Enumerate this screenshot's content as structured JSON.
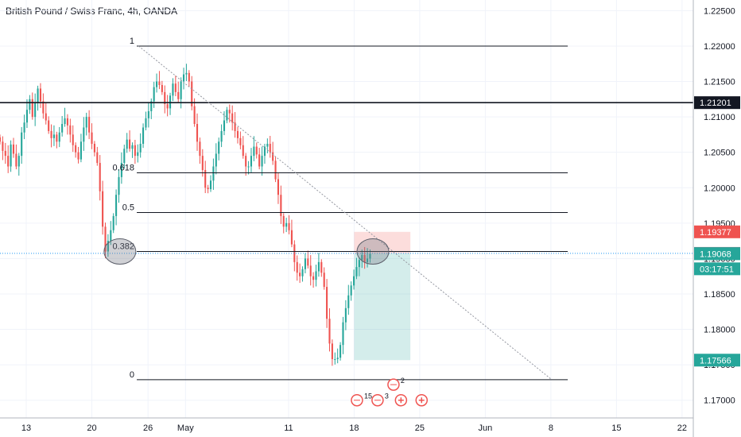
{
  "chart_data": {
    "type": "candlestick",
    "title": "British Pound / Swiss Franc, 4h, OANDA",
    "ylim": [
      1.1675,
      1.2265
    ],
    "y_ticks": [
      "1.22500",
      "1.22000",
      "1.21500",
      "1.21000",
      "1.20500",
      "1.20000",
      "1.19500",
      "1.19000",
      "1.18500",
      "1.18000",
      "1.17500",
      "1.17000"
    ],
    "x_ticks": [
      {
        "label": "13",
        "day": 13
      },
      {
        "label": "20",
        "day": 20
      },
      {
        "label": "26",
        "day": 26
      },
      {
        "label": "May",
        "day": 30
      },
      {
        "label": "11",
        "day": 41
      },
      {
        "label": "18",
        "day": 48
      },
      {
        "label": "25",
        "day": 55
      },
      {
        "label": "Jun",
        "day": 62
      },
      {
        "label": "8",
        "day": 69
      },
      {
        "label": "15",
        "day": 76
      },
      {
        "label": "22",
        "day": 83
      }
    ],
    "xlim": [
      10.2,
      84.2
    ],
    "candle_closes": [
      1.2065,
      1.2052,
      1.2045,
      1.203,
      1.2061,
      1.2048,
      1.203,
      1.2045,
      1.2078,
      1.2092,
      1.211,
      1.2125,
      1.21,
      1.212,
      1.214,
      1.2122,
      1.2105,
      1.2095,
      1.208,
      1.207,
      1.2075,
      1.2065,
      1.2078,
      1.209,
      1.2098,
      1.2088,
      1.2075,
      1.206,
      1.205,
      1.204,
      1.2065,
      1.2085,
      1.21,
      1.2078,
      1.2062,
      1.205,
      1.2035,
      1.1995,
      1.1945,
      1.191,
      1.1925,
      1.194,
      1.196,
      1.199,
      1.2015,
      1.2035,
      1.2055,
      1.2068,
      1.2055,
      1.206,
      1.2045,
      1.205,
      1.2062,
      1.2085,
      1.2098,
      1.2108,
      1.2122,
      1.2142,
      1.215,
      1.2145,
      1.2135,
      1.2118,
      1.2112,
      1.213,
      1.2147,
      1.2135,
      1.2125,
      1.215,
      1.216,
      1.2162,
      1.215,
      1.2115,
      1.209,
      1.2065,
      1.2045,
      1.2025,
      1.2,
      1.1998,
      1.201,
      1.203,
      1.2048,
      1.2065,
      1.208,
      1.2095,
      1.211,
      1.2105,
      1.2092,
      1.208,
      1.207,
      1.206,
      1.2045,
      1.203,
      1.203,
      1.2045,
      1.2058,
      1.2047,
      1.203,
      1.2045,
      1.2058,
      1.2062,
      1.205,
      1.2038,
      1.2012,
      1.199,
      1.196,
      1.1945,
      1.195,
      1.194,
      1.192,
      1.1895,
      1.188,
      1.1875,
      1.1885,
      1.19,
      1.189,
      1.1875,
      1.187,
      1.1882,
      1.1895,
      1.188,
      1.186,
      1.1815,
      1.178,
      1.1758,
      1.1758,
      1.176,
      1.1778,
      1.181,
      1.183,
      1.1848,
      1.1862,
      1.1875,
      1.1888,
      1.1898,
      1.1905,
      1.1895,
      1.19,
      1.1907
    ],
    "fibonacci": [
      {
        "label": "1",
        "value": 1.22
      },
      {
        "label": "0.618",
        "value": 1.2021
      },
      {
        "label": "0.5",
        "value": 1.1965
      },
      {
        "label": "0.382",
        "value": 1.191
      },
      {
        "label": "0",
        "value": 1.1729
      }
    ],
    "horizontal_line": {
      "value": 1.21201
    },
    "trendline": {
      "start": {
        "day": 25,
        "value": 1.22
      },
      "end": {
        "day": 69,
        "value": 1.173
      }
    },
    "position": {
      "entry": 1.19073,
      "stop": 1.19377,
      "target": 1.17566,
      "start_day": 48,
      "end_day": 54
    },
    "highlight_circles": [
      {
        "day": 23,
        "value": 1.191
      },
      {
        "day": 50,
        "value": 1.191
      }
    ],
    "current_price": 1.19073,
    "price_badges": [
      {
        "text": "1.21201",
        "value": 1.21201,
        "color": "#131722"
      },
      {
        "text": "1.19377",
        "value": 1.19377,
        "color": "#ef5350"
      },
      {
        "text": "1.19073",
        "value": 1.19073,
        "color": "#787b86"
      },
      {
        "text": "1.19068",
        "value": 1.19068,
        "color": "#26a69a"
      },
      {
        "text": "03:17:51",
        "value": 1.18855,
        "color": "#26a69a"
      },
      {
        "text": "1.17566",
        "value": 1.17566,
        "color": "#26a69a"
      }
    ],
    "events": [
      "2",
      "15",
      "3"
    ],
    "colors": {
      "up": "#26a69a",
      "down": "#ef5350",
      "grid": "#f0f3fa",
      "axis": "#b2b5be",
      "current_price_line": "#2196f3"
    }
  }
}
